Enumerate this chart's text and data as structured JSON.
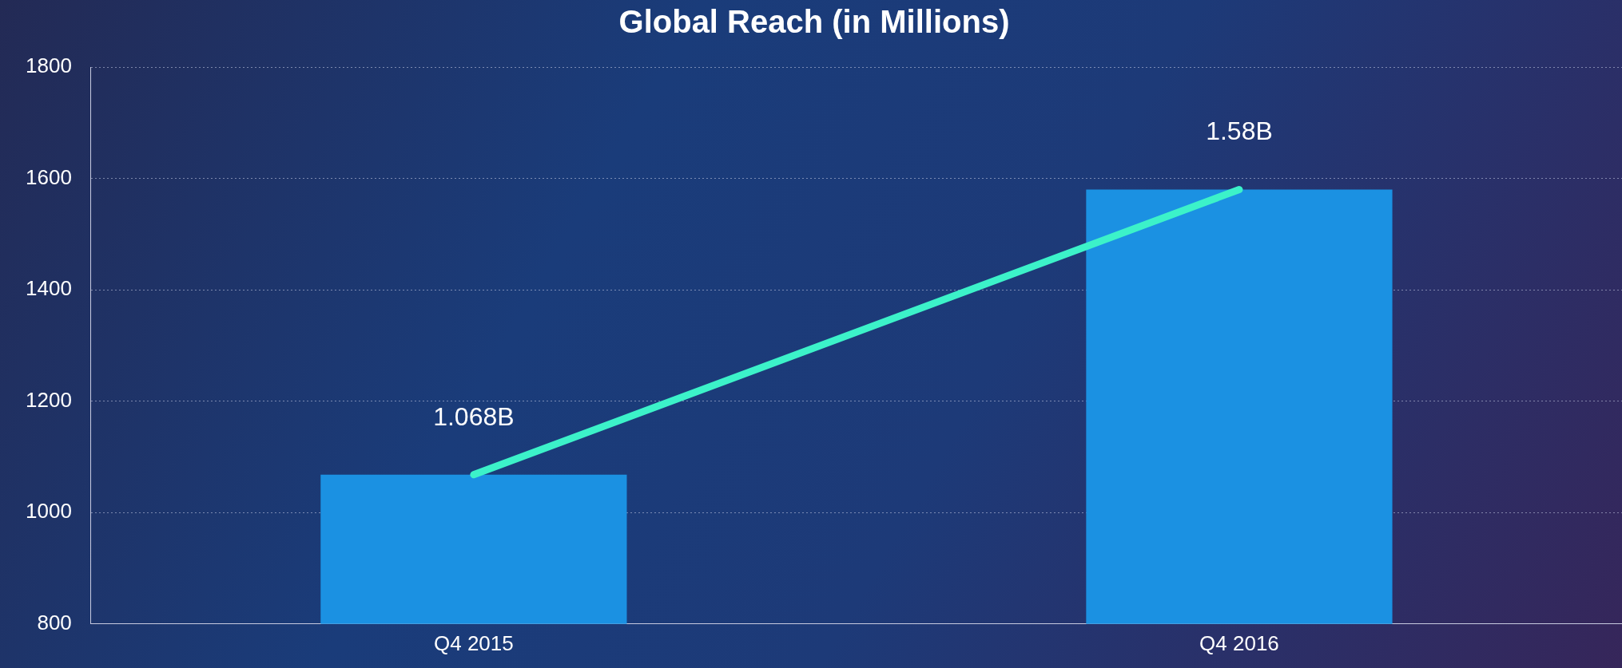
{
  "chart_data": {
    "type": "bar",
    "title": "Global Reach (in Millions)",
    "categories": [
      "Q4 2015",
      "Q4 2016"
    ],
    "series": [
      {
        "color": "#1b91e2",
        "values": [
          1068,
          1580
        ]
      },
      {
        "type": "line",
        "color": "#3cf2c9",
        "values": [
          1068,
          1580
        ]
      }
    ],
    "annotations": [
      {
        "text": "1.068B",
        "x": "Q4 2015",
        "y": 1068
      },
      {
        "text": "1.58B",
        "x": "Q4 2016",
        "y": 1580
      }
    ],
    "ylim": [
      800,
      1800
    ],
    "yticks": [
      800,
      1000,
      1200,
      1400,
      1600,
      1800
    ],
    "grid": "y",
    "legend": false,
    "marker": "none"
  }
}
